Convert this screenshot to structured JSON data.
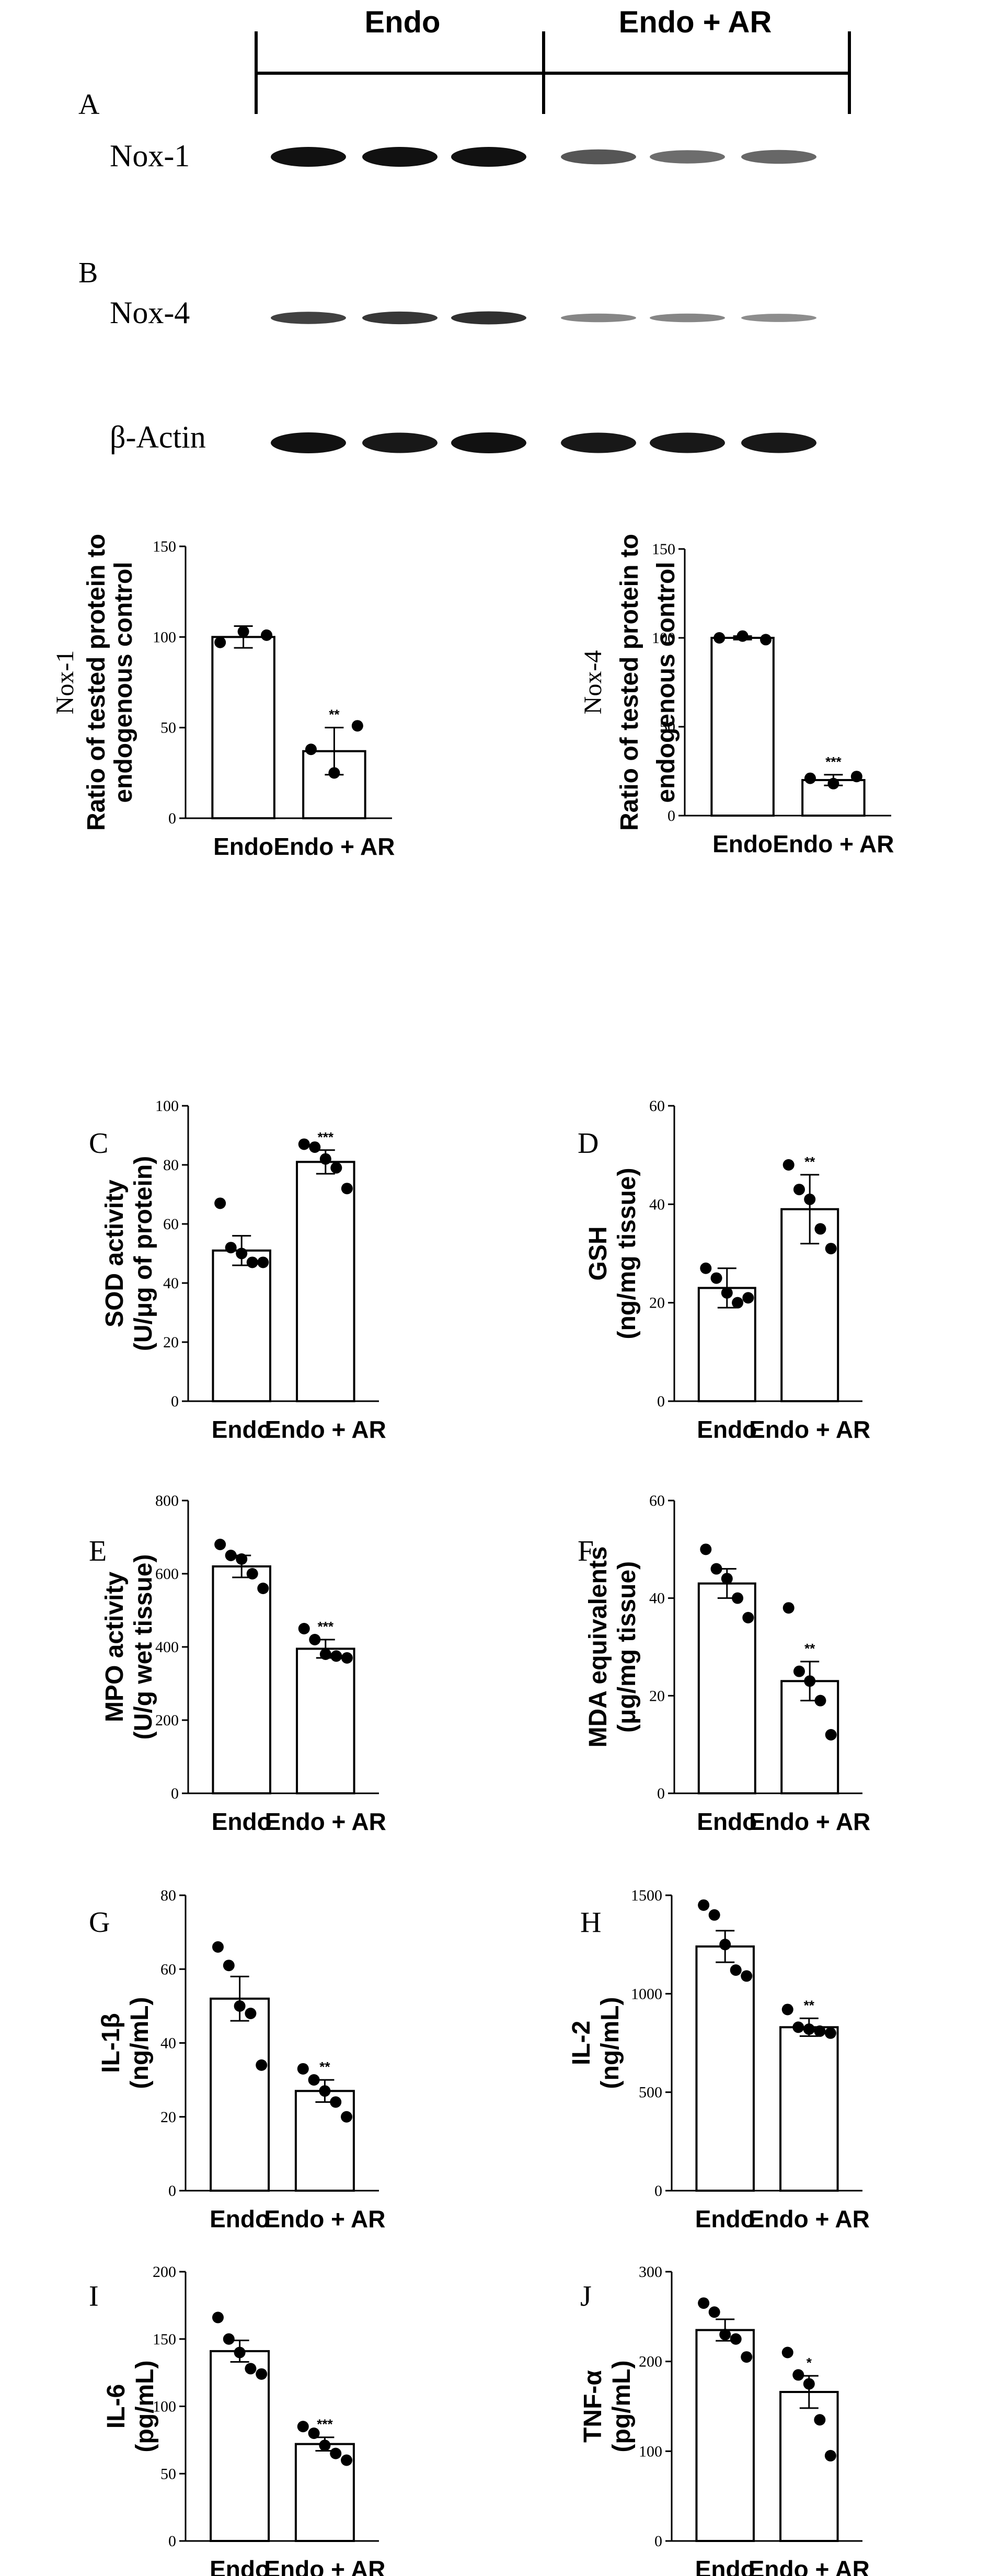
{
  "blot": {
    "group_headers": [
      "Endo",
      "Endo + AR"
    ],
    "panel_labels": [
      "A",
      "B"
    ],
    "row_labels": [
      "Nox-1",
      "Nox-4",
      "β-Actin"
    ],
    "band_color": "#111111",
    "band_intensity": {
      "Nox-1": [
        1.0,
        1.0,
        1.0,
        0.55,
        0.4,
        0.45
      ],
      "Nox-4": [
        0.7,
        0.75,
        0.8,
        0.25,
        0.25,
        0.2
      ],
      "β-Actin": [
        1.0,
        0.95,
        1.0,
        0.95,
        0.95,
        0.95
      ]
    }
  },
  "chart_data": [
    {
      "id": "nox1",
      "type": "bar",
      "panel_label": "",
      "title": "",
      "xlabel": "",
      "ylabel_lines": [
        "Nox-1",
        "Ratio of tested protein to",
        "endogenous control"
      ],
      "categories": [
        "Endo",
        "Endo + AR"
      ],
      "values": [
        100,
        37
      ],
      "errors": [
        6,
        13
      ],
      "points": [
        [
          97,
          103,
          101
        ],
        [
          38,
          25,
          51
        ]
      ],
      "significance": [
        "",
        "**"
      ],
      "ylim": [
        0,
        150
      ],
      "yticks": [
        0,
        50,
        100,
        150
      ]
    },
    {
      "id": "nox4",
      "type": "bar",
      "panel_label": "",
      "title": "",
      "xlabel": "",
      "ylabel_lines": [
        "Nox-4",
        "Ratio of tested protein to",
        "endogenous control"
      ],
      "categories": [
        "Endo",
        "Endo + AR"
      ],
      "values": [
        100,
        20
      ],
      "errors": [
        1,
        3
      ],
      "points": [
        [
          100,
          101,
          99
        ],
        [
          21,
          18,
          22
        ]
      ],
      "significance": [
        "",
        "***"
      ],
      "ylim": [
        0,
        150
      ],
      "yticks": [
        0,
        50,
        100,
        150
      ]
    },
    {
      "id": "sod",
      "type": "bar",
      "panel_label": "C",
      "title": "",
      "xlabel": "",
      "ylabel_lines": [
        "SOD activity",
        "(U/μg of protein)"
      ],
      "categories": [
        "Endo",
        "Endo + AR"
      ],
      "values": [
        51,
        81
      ],
      "errors": [
        5,
        4
      ],
      "points": [
        [
          67,
          52,
          50,
          47,
          47
        ],
        [
          87,
          86,
          82,
          79,
          72
        ]
      ],
      "significance": [
        "",
        "***"
      ],
      "ylim": [
        0,
        100
      ],
      "yticks": [
        0,
        20,
        40,
        60,
        80,
        100
      ]
    },
    {
      "id": "gsh",
      "type": "bar",
      "panel_label": "D",
      "title": "",
      "xlabel": "",
      "ylabel_lines": [
        "GSH",
        "(ng/mg tissue)"
      ],
      "categories": [
        "Endo",
        "Endo + AR"
      ],
      "values": [
        23,
        39
      ],
      "errors": [
        4,
        7
      ],
      "points": [
        [
          27,
          25,
          22,
          20,
          21
        ],
        [
          48,
          43,
          41,
          35,
          31
        ]
      ],
      "significance": [
        "",
        "**"
      ],
      "ylim": [
        0,
        60
      ],
      "yticks": [
        0,
        20,
        40,
        60
      ]
    },
    {
      "id": "mpo",
      "type": "bar",
      "panel_label": "E",
      "title": "",
      "xlabel": "",
      "ylabel_lines": [
        "MPO activity",
        "(U/g wet tissue)"
      ],
      "categories": [
        "Endo",
        "Endo + AR"
      ],
      "values": [
        620,
        395
      ],
      "errors": [
        30,
        25
      ],
      "points": [
        [
          680,
          650,
          640,
          600,
          560
        ],
        [
          450,
          420,
          380,
          375,
          370
        ]
      ],
      "significance": [
        "",
        "***"
      ],
      "ylim": [
        0,
        800
      ],
      "yticks": [
        0,
        200,
        400,
        600,
        800
      ]
    },
    {
      "id": "mda",
      "type": "bar",
      "panel_label": "F",
      "title": "",
      "xlabel": "",
      "ylabel_lines": [
        "MDA equivalents",
        "(μg/mg tissue)"
      ],
      "categories": [
        "Endo",
        "Endo + AR"
      ],
      "values": [
        43,
        23
      ],
      "errors": [
        3,
        4
      ],
      "points": [
        [
          50,
          46,
          44,
          40,
          36
        ],
        [
          38,
          25,
          23,
          19,
          12
        ]
      ],
      "significance": [
        "",
        "**"
      ],
      "ylim": [
        0,
        60
      ],
      "yticks": [
        0,
        20,
        40,
        60
      ]
    },
    {
      "id": "il1b",
      "type": "bar",
      "panel_label": "G",
      "title": "",
      "xlabel": "",
      "ylabel_lines": [
        "IL-1β",
        "(ng/mL)"
      ],
      "categories": [
        "Endo",
        "Endo + AR"
      ],
      "values": [
        52,
        27
      ],
      "errors": [
        6,
        3
      ],
      "points": [
        [
          66,
          61,
          50,
          48,
          34
        ],
        [
          33,
          30,
          27,
          24,
          20
        ]
      ],
      "significance": [
        "",
        "**"
      ],
      "ylim": [
        0,
        80
      ],
      "yticks": [
        0,
        20,
        40,
        60,
        80
      ]
    },
    {
      "id": "il2",
      "type": "bar",
      "panel_label": "H",
      "title": "",
      "xlabel": "",
      "ylabel_lines": [
        "IL-2",
        "(ng/mL)"
      ],
      "categories": [
        "Endo",
        "Endo + AR"
      ],
      "values": [
        1240,
        830
      ],
      "errors": [
        80,
        45
      ],
      "points": [
        [
          1450,
          1400,
          1250,
          1120,
          1090
        ],
        [
          920,
          830,
          820,
          810,
          800
        ]
      ],
      "significance": [
        "",
        "**"
      ],
      "ylim": [
        0,
        1500
      ],
      "yticks": [
        0,
        500,
        1000,
        1500
      ]
    },
    {
      "id": "il6",
      "type": "bar",
      "panel_label": "I",
      "title": "",
      "xlabel": "",
      "ylabel_lines": [
        "IL-6",
        "(pg/mL)"
      ],
      "categories": [
        "Endo",
        "Endo + AR"
      ],
      "values": [
        141,
        72
      ],
      "errors": [
        8,
        5
      ],
      "points": [
        [
          166,
          150,
          140,
          128,
          124
        ],
        [
          85,
          80,
          71,
          65,
          60
        ]
      ],
      "significance": [
        "",
        "***"
      ],
      "ylim": [
        0,
        200
      ],
      "yticks": [
        0,
        50,
        100,
        150,
        200
      ]
    },
    {
      "id": "tnfa",
      "type": "bar",
      "panel_label": "J",
      "title": "",
      "xlabel": "",
      "ylabel_lines": [
        "TNF-α",
        "(pg/mL)"
      ],
      "categories": [
        "Endo",
        "Endo + AR"
      ],
      "values": [
        235,
        166
      ],
      "errors": [
        12,
        18
      ],
      "points": [
        [
          265,
          255,
          230,
          225,
          205
        ],
        [
          210,
          185,
          175,
          135,
          95
        ]
      ],
      "significance": [
        "",
        "*"
      ],
      "ylim": [
        0,
        300
      ],
      "yticks": [
        0,
        100,
        200,
        300
      ]
    }
  ]
}
